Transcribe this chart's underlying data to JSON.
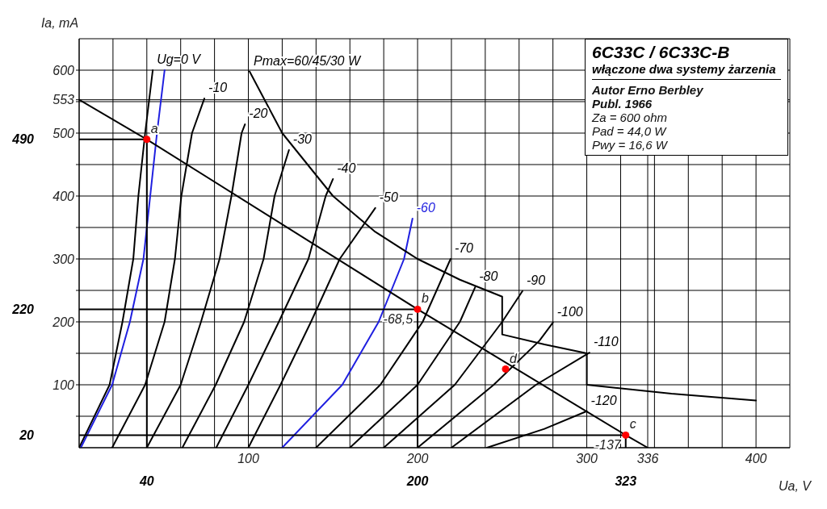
{
  "chart_data": {
    "type": "line",
    "title": "6C33C / 6C33C-B",
    "subtitle": "włączone dwa systemy żarzenia",
    "xlabel": "Ua, V",
    "ylabel": "Ia, mA",
    "xlim": [
      0,
      420
    ],
    "ylim": [
      0,
      650
    ],
    "xticks": [
      {
        "value": 20,
        "label": null
      },
      {
        "value": 40,
        "label": null
      },
      {
        "value": 60,
        "label": null
      },
      {
        "value": 80,
        "label": null
      },
      100,
      {
        "value": 120,
        "label": null
      },
      {
        "value": 140,
        "label": null
      },
      {
        "value": 160,
        "label": null
      },
      {
        "value": 180,
        "label": null
      },
      200,
      {
        "value": 220,
        "label": null
      },
      {
        "value": 240,
        "label": null
      },
      {
        "value": 260,
        "label": null
      },
      {
        "value": 280,
        "label": null
      },
      300,
      {
        "value": 320,
        "label": null
      },
      336,
      {
        "value": 340,
        "label": null
      },
      {
        "value": 360,
        "label": null
      },
      {
        "value": 380,
        "label": null
      },
      400
    ],
    "yticks": [
      {
        "value": 50,
        "label": null
      },
      100,
      {
        "value": 150,
        "label": null
      },
      200,
      {
        "value": 250,
        "label": null
      },
      300,
      {
        "value": 350,
        "label": null
      },
      400,
      {
        "value": 450,
        "label": null
      },
      500,
      {
        "value": 550,
        "label": null
      },
      553,
      600
    ],
    "x2lim": [
      0,
      420
    ],
    "x2ticks": [
      40,
      200,
      323
    ],
    "y2lim": [
      0,
      650
    ],
    "y2ticks": [
      20,
      220,
      490
    ],
    "grid": true,
    "series": [
      {
        "name": "Ug=0 V",
        "color": "#000000",
        "x": [
          0,
          18,
          25.6,
          32,
          35,
          39,
          43.5
        ],
        "values": [
          0,
          100,
          200,
          300,
          400,
          500,
          600
        ]
      },
      {
        "color": "#1f1fe0",
        "x": [
          1,
          19.5,
          30,
          38,
          42,
          46,
          50.5
        ],
        "values": [
          0,
          100,
          200,
          300,
          400,
          500,
          600
        ]
      },
      {
        "name": "-10",
        "color": "#000000",
        "x": [
          19.5,
          39,
          50.5,
          56.6,
          60.4,
          66.7,
          74
        ],
        "values": [
          0,
          100,
          200,
          300,
          400,
          500,
          555
        ]
      },
      {
        "name": "-20",
        "color": "#000000",
        "x": [
          40,
          60,
          72,
          83,
          90,
          96,
          98
        ],
        "values": [
          0,
          100,
          200,
          300,
          400,
          500,
          514
        ]
      },
      {
        "name": "-30",
        "color": "#000000",
        "x": [
          61,
          80.7,
          97.5,
          109,
          115.5,
          124
        ],
        "values": [
          0,
          100,
          200,
          300,
          400,
          473
        ]
      },
      {
        "name": "-40",
        "color": "#000000",
        "x": [
          81,
          100,
          118,
          135.5,
          145.7,
          150
        ],
        "values": [
          0,
          100,
          200,
          300,
          400,
          427
        ]
      },
      {
        "name": "-50",
        "color": "#000000",
        "x": [
          100,
          119,
          137,
          154,
          175
        ],
        "values": [
          0,
          100,
          200,
          300,
          381
        ]
      },
      {
        "name": "-60",
        "color": "#1f1fe0",
        "x": [
          120,
          155.5,
          177,
          192,
          197
        ],
        "values": [
          0,
          100,
          200,
          300,
          364
        ]
      },
      {
        "name": "-70",
        "color": "#000000",
        "x": [
          140,
          178,
          203,
          219.5
        ],
        "values": [
          0,
          100,
          200,
          300
        ]
      },
      {
        "name": "-80",
        "color": "#000000",
        "x": [
          160,
          200,
          225,
          234
        ],
        "values": [
          0,
          100,
          200,
          255
        ]
      },
      {
        "name": "-90",
        "color": "#000000",
        "x": [
          180,
          222,
          250,
          262
        ],
        "values": [
          0,
          100,
          200,
          249
        ]
      },
      {
        "name": "-100",
        "color": "#000000",
        "x": [
          200,
          245,
          272,
          280
        ],
        "values": [
          0,
          100,
          170,
          199
        ]
      },
      {
        "name": "-110",
        "color": "#000000",
        "x": [
          220,
          270,
          301.6
        ],
        "values": [
          0,
          100,
          151
        ]
      },
      {
        "name": "-120",
        "color": "#000000",
        "x": [
          241,
          275,
          300
        ],
        "values": [
          0,
          30,
          58
        ]
      },
      {
        "name": "Pmax=60/45/30 W",
        "color": "#000000",
        "x": [
          400,
          350,
          300,
          300,
          275,
          250,
          250,
          225,
          200,
          175,
          150,
          120,
          100.7
        ],
        "values": [
          75,
          86,
          100,
          150,
          164,
          180,
          240,
          267,
          300,
          343,
          400,
          500,
          598
        ]
      },
      {
        "color": "#000000",
        "x": [
          0,
          40,
          200,
          323,
          336
        ],
        "values": [
          553,
          490,
          220,
          20,
          0
        ]
      },
      {
        "color": "#000000",
        "x": [
          0,
          40,
          40
        ],
        "values": [
          490,
          490,
          0
        ]
      },
      {
        "color": "#000000",
        "x": [
          0,
          200,
          200
        ],
        "values": [
          220,
          220,
          0
        ]
      },
      {
        "color": "#000000",
        "x": [
          0,
          323,
          323
        ],
        "values": [
          20,
          20,
          0
        ]
      },
      {
        "type": "scatter",
        "color": "#ff0000",
        "x": [
          40,
          200,
          323,
          252
        ],
        "values": [
          490,
          220,
          20,
          125
        ]
      }
    ],
    "annotations": [
      {
        "text": "a",
        "x": 40,
        "y": 490
      },
      {
        "text": "b",
        "x": 200,
        "y": 220
      },
      {
        "text": "-68,5",
        "x": 200,
        "y": 220
      },
      {
        "text": "c",
        "x": 323,
        "y": 20
      },
      {
        "text": "-137",
        "x": 323,
        "y": 20
      },
      {
        "text": "d",
        "x": 252,
        "y": 125
      },
      "Autor Erno Berbley",
      "Publ. 1966",
      "Za = 600 ohm",
      "Pad = 44,0 W",
      "Pwy = 16,6 W"
    ]
  }
}
